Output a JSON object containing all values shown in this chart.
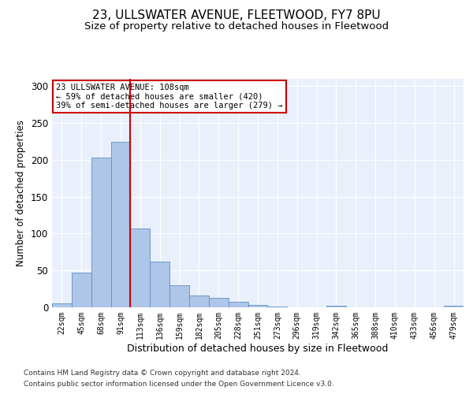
{
  "title": "23, ULLSWATER AVENUE, FLEETWOOD, FY7 8PU",
  "subtitle": "Size of property relative to detached houses in Fleetwood",
  "xlabel": "Distribution of detached houses by size in Fleetwood",
  "ylabel": "Number of detached properties",
  "bin_labels": [
    "22sqm",
    "45sqm",
    "68sqm",
    "91sqm",
    "113sqm",
    "136sqm",
    "159sqm",
    "182sqm",
    "205sqm",
    "228sqm",
    "251sqm",
    "273sqm",
    "296sqm",
    "319sqm",
    "342sqm",
    "365sqm",
    "388sqm",
    "410sqm",
    "433sqm",
    "456sqm",
    "479sqm"
  ],
  "bar_heights": [
    5,
    47,
    203,
    225,
    107,
    62,
    30,
    16,
    13,
    7,
    3,
    1,
    0,
    0,
    2,
    0,
    0,
    0,
    0,
    0,
    2
  ],
  "bar_color": "#aec6e8",
  "bar_edge_color": "#5a8fc2",
  "background_color": "#eaf0fb",
  "vline_x_index": 4,
  "vline_color": "#cc0000",
  "annotation_text": "23 ULLSWATER AVENUE: 108sqm\n← 59% of detached houses are smaller (420)\n39% of semi-detached houses are larger (279) →",
  "annotation_box_color": "#ffffff",
  "annotation_box_edge": "#cc0000",
  "ylim": [
    0,
    310
  ],
  "yticks": [
    0,
    50,
    100,
    150,
    200,
    250,
    300
  ],
  "footnote1": "Contains HM Land Registry data © Crown copyright and database right 2024.",
  "footnote2": "Contains public sector information licensed under the Open Government Licence v3.0.",
  "title_fontsize": 11,
  "subtitle_fontsize": 9.5,
  "xlabel_fontsize": 9,
  "ylabel_fontsize": 8.5
}
